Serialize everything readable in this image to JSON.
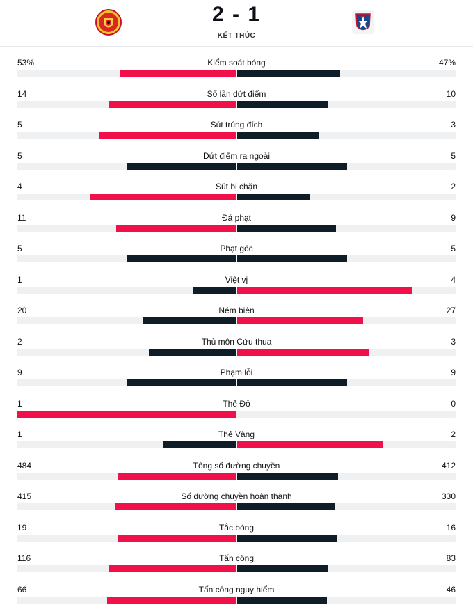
{
  "match": {
    "score": "2 - 1",
    "status": "KẾT THÚC",
    "home_icon": "manchester-united-crest",
    "away_icon": "crystal-palace-crest"
  },
  "colors": {
    "leader": "#f0114a",
    "trailer": "#0f1e26",
    "track": "#eef0f2"
  },
  "stats": [
    {
      "label": "Kiểm soát bóng",
      "home": "53%",
      "away": "47%",
      "home_value": 53,
      "away_value": 47
    },
    {
      "label": "Số lần dứt điểm",
      "home": "14",
      "away": "10",
      "home_value": 14,
      "away_value": 10
    },
    {
      "label": "Sút trúng đích",
      "home": "5",
      "away": "3",
      "home_value": 5,
      "away_value": 3
    },
    {
      "label": "Dứt điểm ra ngoài",
      "home": "5",
      "away": "5",
      "home_value": 5,
      "away_value": 5
    },
    {
      "label": "Sút bị chặn",
      "home": "4",
      "away": "2",
      "home_value": 4,
      "away_value": 2
    },
    {
      "label": "Đá phạt",
      "home": "11",
      "away": "9",
      "home_value": 11,
      "away_value": 9
    },
    {
      "label": "Phạt góc",
      "home": "5",
      "away": "5",
      "home_value": 5,
      "away_value": 5
    },
    {
      "label": "Việt vị",
      "home": "1",
      "away": "4",
      "home_value": 1,
      "away_value": 4
    },
    {
      "label": "Ném biên",
      "home": "20",
      "away": "27",
      "home_value": 20,
      "away_value": 27
    },
    {
      "label": "Thủ môn Cứu thua",
      "home": "2",
      "away": "3",
      "home_value": 2,
      "away_value": 3
    },
    {
      "label": "Phạm lỗi",
      "home": "9",
      "away": "9",
      "home_value": 9,
      "away_value": 9
    },
    {
      "label": "Thẻ Đỏ",
      "home": "1",
      "away": "0",
      "home_value": 1,
      "away_value": 0
    },
    {
      "label": "Thẻ Vàng",
      "home": "1",
      "away": "2",
      "home_value": 1,
      "away_value": 2
    },
    {
      "label": "Tổng số đường chuyền",
      "home": "484",
      "away": "412",
      "home_value": 484,
      "away_value": 412
    },
    {
      "label": "Số đường chuyền hoàn thành",
      "home": "415",
      "away": "330",
      "home_value": 415,
      "away_value": 330
    },
    {
      "label": "Tắc bóng",
      "home": "19",
      "away": "16",
      "home_value": 19,
      "away_value": 16
    },
    {
      "label": "Tấn công",
      "home": "116",
      "away": "83",
      "home_value": 116,
      "away_value": 83
    },
    {
      "label": "Tấn công nguy hiểm",
      "home": "66",
      "away": "46",
      "home_value": 66,
      "away_value": 46
    }
  ]
}
